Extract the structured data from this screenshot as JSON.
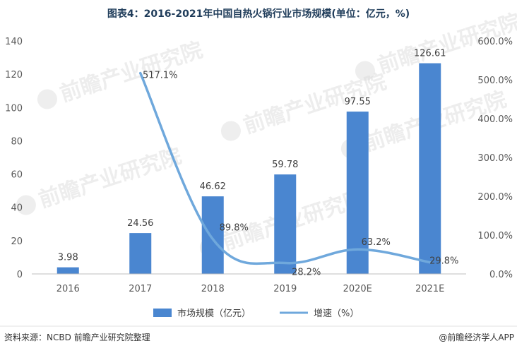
{
  "chart_data": {
    "type": "bar",
    "title": "图表4：2016-2021年中国自热火锅行业市场规模(单位：亿元，%)",
    "categories": [
      "2016",
      "2017",
      "2018",
      "2019",
      "2020E",
      "2021E"
    ],
    "series": [
      {
        "name": "市场规模（亿元）",
        "type": "bar",
        "axis": "left",
        "values": [
          3.98,
          24.56,
          46.62,
          59.78,
          97.55,
          126.61
        ],
        "labels": [
          "3.98",
          "24.56",
          "46.62",
          "59.78",
          "97.55",
          "126.61"
        ]
      },
      {
        "name": "增速（%）",
        "type": "line",
        "axis": "right",
        "values": [
          null,
          517.1,
          89.8,
          28.2,
          63.2,
          29.8
        ],
        "labels": [
          "",
          "517.1%",
          "89.8%",
          "28.2%",
          "63.2%",
          "29.8%"
        ]
      }
    ],
    "y_left": {
      "min": 0,
      "max": 140,
      "ticks": [
        "0",
        "20",
        "40",
        "60",
        "80",
        "100",
        "120",
        "140"
      ]
    },
    "y_right": {
      "min": 0,
      "max": 600,
      "ticks": [
        "0.0%",
        "100.0%",
        "200.0%",
        "300.0%",
        "400.0%",
        "500.0%",
        "600.0%"
      ]
    },
    "legend_position": "bottom",
    "grid": false,
    "colors": {
      "bar": "#4a86d0",
      "line": "#6fa8dc"
    }
  },
  "footer": {
    "source": "资料来源：NCBD 前瞻产业研究院整理",
    "brand": "@前瞻经济学人APP"
  },
  "watermark": {
    "text": "前瞻产业研究院"
  }
}
